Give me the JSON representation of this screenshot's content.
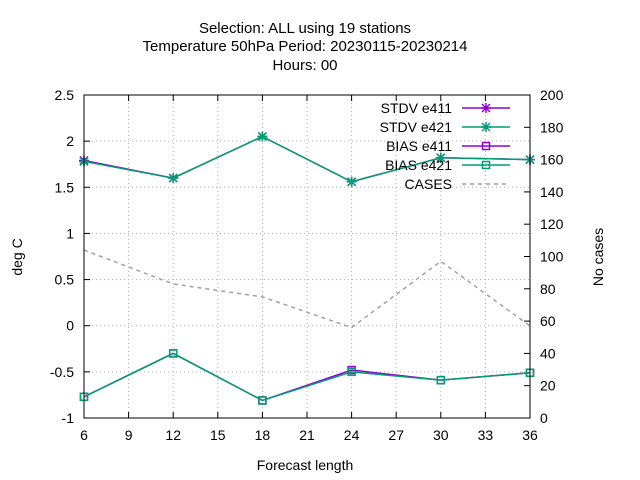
{
  "chart_data": {
    "type": "line",
    "title_lines": [
      "Selection: ALL using    19 stations",
      "Temperature 50hPa   Period: 20230115-20230214",
      "Hours:  00"
    ],
    "xlabel": "Forecast length",
    "ylabel": "deg C",
    "y2label": "No cases",
    "x": [
      6,
      12,
      18,
      24,
      30,
      36
    ],
    "xticks": [
      6,
      9,
      12,
      15,
      18,
      21,
      24,
      27,
      30,
      33,
      36
    ],
    "xlim": [
      6,
      36
    ],
    "ylim": [
      -1,
      2.5
    ],
    "yticks": [
      -1,
      -0.5,
      0,
      0.5,
      1,
      1.5,
      2,
      2.5
    ],
    "ytick_labels": [
      "-1",
      "-0.5",
      "0",
      "0.5",
      "1",
      "1.5",
      "2",
      "2.5"
    ],
    "y2lim": [
      0,
      200
    ],
    "y2ticks": [
      0,
      20,
      40,
      60,
      80,
      100,
      120,
      140,
      160,
      180,
      200
    ],
    "grid": true,
    "legend_position": "top-right",
    "series": [
      {
        "name": "STDV e411",
        "axis": "y",
        "color": "#9400d3",
        "marker": "star",
        "dash": false,
        "values": [
          1.79,
          1.6,
          2.05,
          1.56,
          1.82,
          1.8
        ]
      },
      {
        "name": "STDV e421",
        "axis": "y",
        "color": "#009e73",
        "marker": "star",
        "dash": false,
        "values": [
          1.78,
          1.6,
          2.05,
          1.56,
          1.82,
          1.8
        ]
      },
      {
        "name": "BIAS e411",
        "axis": "y",
        "color": "#9400d3",
        "marker": "square",
        "dash": false,
        "values": [
          -0.77,
          -0.3,
          -0.81,
          -0.48,
          -0.59,
          -0.51
        ]
      },
      {
        "name": "BIAS e421",
        "axis": "y",
        "color": "#009e73",
        "marker": "square",
        "dash": false,
        "values": [
          -0.77,
          -0.3,
          -0.81,
          -0.5,
          -0.59,
          -0.51
        ]
      },
      {
        "name": "CASES",
        "axis": "y2",
        "color": "#a0a0a0",
        "marker": "none",
        "dash": true,
        "values": [
          104,
          83,
          75,
          56,
          97,
          57
        ]
      }
    ]
  }
}
